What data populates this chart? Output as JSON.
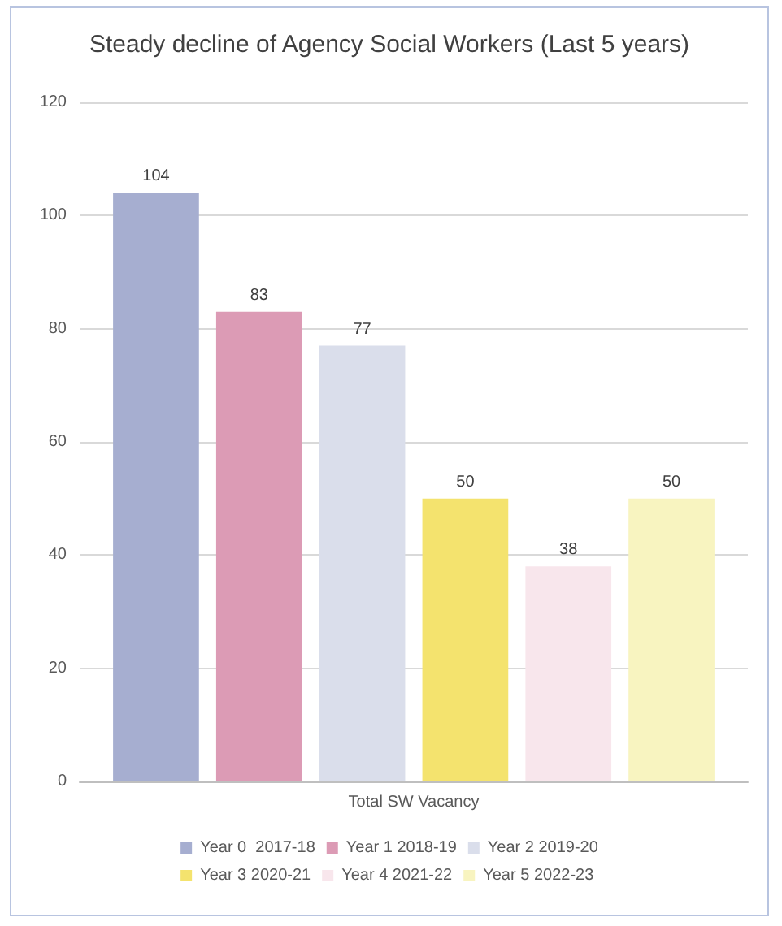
{
  "chart_data": {
    "type": "bar",
    "title": "Steady decline of Agency Social Workers (Last 5 years)",
    "categories": [
      "Total SW Vacancy"
    ],
    "series": [
      {
        "name": "Year 0  2017-18",
        "color": "#a6aed0",
        "values": [
          104
        ]
      },
      {
        "name": "Year 1 2018-19",
        "color": "#dc9bb5",
        "values": [
          83
        ]
      },
      {
        "name": "Year 2 2019-20",
        "color": "#dadeeb",
        "values": [
          77
        ]
      },
      {
        "name": "Year 3 2020-21",
        "color": "#f4e36e",
        "values": [
          50
        ]
      },
      {
        "name": "Year 4 2021-22",
        "color": "#f8e6ec",
        "values": [
          38
        ]
      },
      {
        "name": "Year 5 2022-23",
        "color": "#f8f4c0",
        "values": [
          50
        ]
      }
    ],
    "ylim": [
      0,
      120
    ],
    "yticks": [
      0,
      20,
      40,
      60,
      80,
      100,
      120
    ],
    "grid": "y",
    "legend": "bottom",
    "data_labels": true
  }
}
